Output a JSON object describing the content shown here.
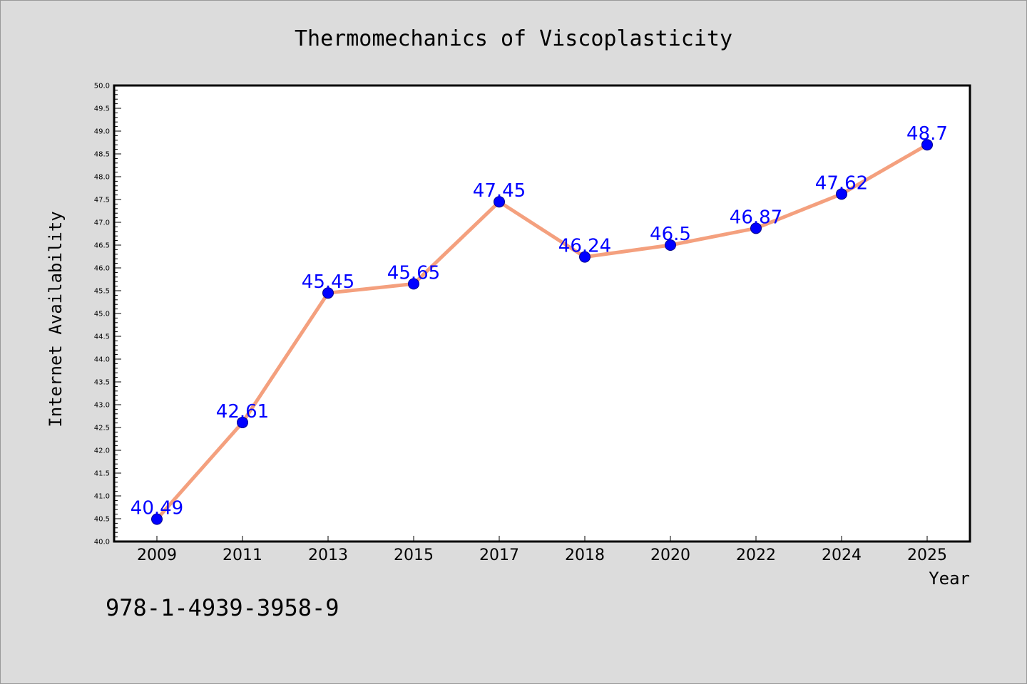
{
  "chart_data": {
    "type": "line",
    "title": "Thermomechanics of Viscoplasticity",
    "xlabel": "Year",
    "ylabel": "Internet Availability",
    "categories": [
      "2009",
      "2011",
      "2013",
      "2015",
      "2017",
      "2018",
      "2020",
      "2022",
      "2024",
      "2025"
    ],
    "series": [
      {
        "values": [
          40.49,
          42.61,
          45.45,
          45.65,
          47.45,
          46.24,
          46.5,
          46.87,
          47.62,
          48.7
        ],
        "labels": [
          "40.49",
          "42.61",
          "45.45",
          "45.65",
          "47.45",
          "46.24",
          "46.5",
          "46.87",
          "47.62",
          "48.7"
        ]
      }
    ],
    "ylim": [
      40.0,
      50.0
    ],
    "yticks": [
      "40.0",
      "40.5",
      "41.0",
      "41.5",
      "42.0",
      "42.5",
      "43.0",
      "43.5",
      "44.0",
      "44.5",
      "45.0",
      "45.5",
      "46.0",
      "46.5",
      "47.0",
      "47.5",
      "48.0",
      "48.5",
      "49.0",
      "49.5",
      "50.0"
    ],
    "grid": false,
    "legend": "none",
    "colors": {
      "line": "#f4a07e",
      "marker": "#0000ff",
      "marker_edge": "#00008b",
      "data_label": "#0000ff",
      "plot_bg": "#ffffff",
      "page_bg": "#dcdcdc"
    }
  },
  "annotation": "978-1-4939-3958-9"
}
